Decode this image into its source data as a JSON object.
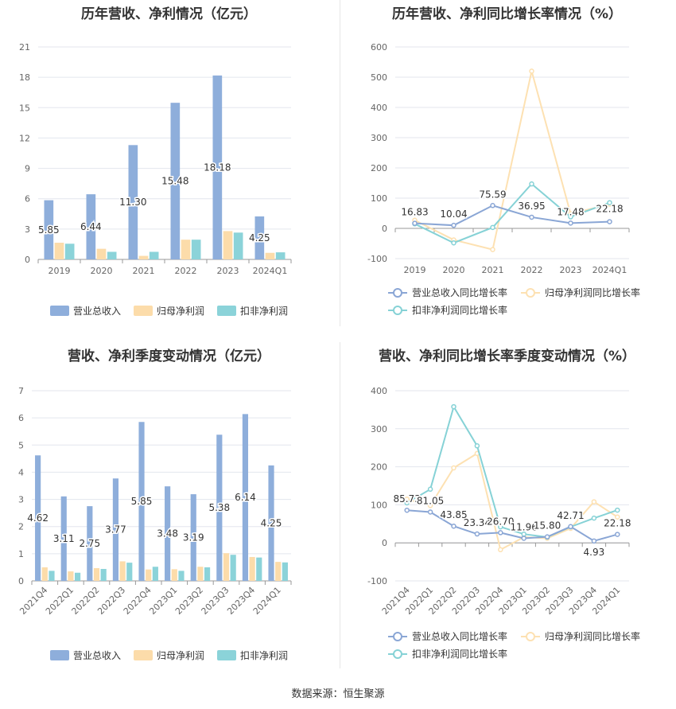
{
  "source": "数据来源：恒生聚源",
  "chart_data": [
    {
      "type": "bar",
      "title": "历年营收、净利情况（亿元）",
      "categories": [
        "2019",
        "2020",
        "2021",
        "2022",
        "2023",
        "2024Q1"
      ],
      "ylim": [
        0,
        21
      ],
      "yticks": [
        0,
        3,
        6,
        9,
        12,
        15,
        18,
        21
      ],
      "grid": true,
      "legend": "bottom",
      "series": [
        {
          "name": "营业总收入",
          "color": "#8eaedb",
          "values": [
            5.85,
            6.44,
            11.3,
            15.48,
            18.18,
            4.25
          ],
          "labels": [
            "5.85",
            "6.44",
            "11.30",
            "15.48",
            "18.18",
            "4.25"
          ]
        },
        {
          "name": "归母净利润",
          "color": "#fcdcaa",
          "values": [
            1.65,
            1.05,
            0.35,
            1.95,
            2.8,
            0.65
          ]
        },
        {
          "name": "扣非净利润",
          "color": "#8bd3d9",
          "values": [
            1.55,
            0.75,
            0.75,
            1.95,
            2.65,
            0.7
          ]
        }
      ]
    },
    {
      "type": "line",
      "title": "历年营收、净利同比增长率情况（%）",
      "categories": [
        "2019",
        "2020",
        "2021",
        "2022",
        "2023",
        "2024Q1"
      ],
      "ylim": [
        -100,
        600
      ],
      "yticks": [
        -100,
        0,
        100,
        200,
        300,
        400,
        500,
        600
      ],
      "grid": true,
      "legend": "bottom",
      "series": [
        {
          "name": "营业总收入同比增长率",
          "color": "#8aa6d5",
          "values": [
            16.83,
            10.04,
            75.59,
            36.95,
            17.48,
            22.18
          ],
          "labels": [
            "16.83",
            "10.04",
            "75.59",
            "36.95",
            "17.48",
            "22.18"
          ]
        },
        {
          "name": "归母净利润同比增长率",
          "color": "#fde1b2",
          "values": [
            27,
            -38,
            -70,
            520,
            48,
            80
          ]
        },
        {
          "name": "扣非净利润同比增长率",
          "color": "#86d2d6",
          "values": [
            15,
            -48,
            3,
            147,
            38,
            85
          ]
        }
      ]
    },
    {
      "type": "bar",
      "title": "营收、净利季度变动情况（亿元）",
      "categories": [
        "2021Q4",
        "2022Q1",
        "2022Q2",
        "2022Q3",
        "2022Q4",
        "2023Q1",
        "2023Q2",
        "2023Q3",
        "2023Q4",
        "2024Q1"
      ],
      "ylim": [
        0,
        7
      ],
      "yticks": [
        0,
        1,
        2,
        3,
        4,
        5,
        6,
        7
      ],
      "grid": true,
      "legend": "bottom",
      "series": [
        {
          "name": "营业总收入",
          "color": "#8eaedb",
          "values": [
            4.62,
            3.11,
            2.75,
            3.77,
            5.85,
            3.48,
            3.19,
            5.38,
            6.14,
            4.25
          ],
          "labels": [
            "4.62",
            "3.11",
            "2.75",
            "3.77",
            "5.85",
            "3.48",
            "3.19",
            "5.38",
            "6.14",
            "4.25"
          ]
        },
        {
          "name": "归母净利润",
          "color": "#fcdcaa",
          "values": [
            0.5,
            0.35,
            0.47,
            0.72,
            0.42,
            0.43,
            0.52,
            1.02,
            0.88,
            0.7
          ]
        },
        {
          "name": "扣非净利润",
          "color": "#8bd3d9",
          "values": [
            0.37,
            0.3,
            0.44,
            0.67,
            0.52,
            0.37,
            0.5,
            0.96,
            0.86,
            0.68
          ]
        }
      ]
    },
    {
      "type": "line",
      "title": "营收、净利同比增长率季度变动情况（%）",
      "categories": [
        "2021Q4",
        "2022Q1",
        "2022Q2",
        "2022Q3",
        "2022Q4",
        "2023Q1",
        "2023Q2",
        "2023Q3",
        "2023Q4",
        "2024Q1"
      ],
      "ylim": [
        -100,
        400
      ],
      "yticks": [
        -100,
        0,
        100,
        200,
        300,
        400
      ],
      "grid": true,
      "legend": "bottom",
      "series": [
        {
          "name": "营业总收入同比增长率",
          "color": "#8aa6d5",
          "values": [
            85.73,
            81.05,
            43.85,
            23.34,
            26.7,
            11.96,
            15.8,
            42.71,
            4.93,
            22.18
          ],
          "labels": [
            "85.73",
            "81.05",
            "43.85",
            "23.34",
            "26.70",
            "11.96",
            "15.80",
            "42.71",
            "4.93",
            "22.18"
          ]
        },
        {
          "name": "归母净利润同比增长率",
          "color": "#fde1b2",
          "values": [
            115,
            98,
            197,
            235,
            -18,
            15,
            12,
            38,
            108,
            68
          ]
        },
        {
          "name": "扣非净利润同比增长率",
          "color": "#86d2d6",
          "values": [
            105,
            141,
            358,
            255,
            42,
            23,
            15,
            42,
            65,
            86
          ]
        }
      ]
    }
  ]
}
